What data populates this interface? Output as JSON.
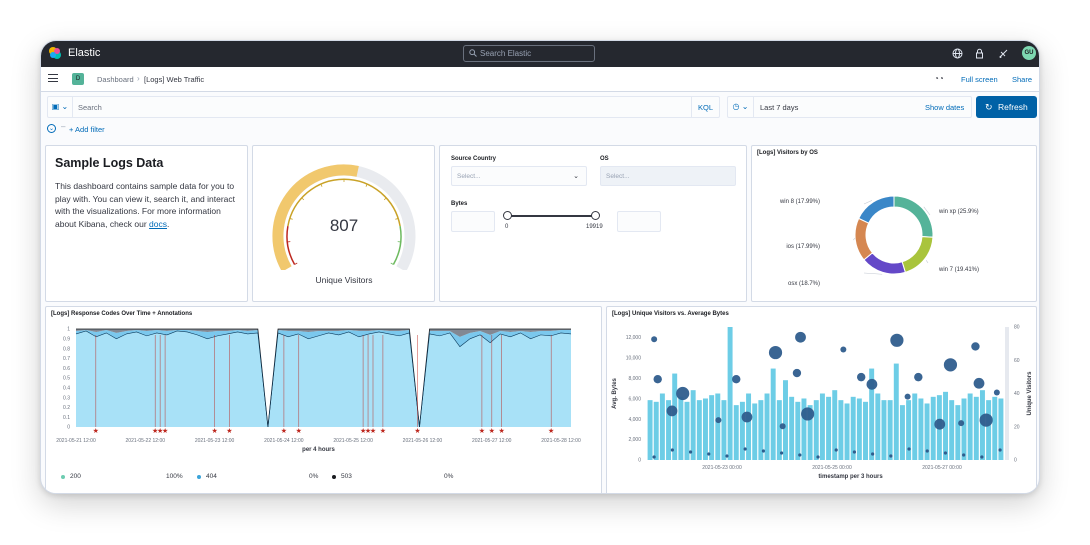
{
  "app": {
    "brand": "Elastic",
    "search_placeholder": "Search Elastic",
    "avatar_initials": "GU"
  },
  "breadcrumbs": {
    "space_initial": "D",
    "items": [
      "Dashboard",
      "[Logs] Web Traffic"
    ]
  },
  "header_actions": {
    "full_screen": "Full screen",
    "share": "Share"
  },
  "query": {
    "placeholder": "Search",
    "language": "KQL",
    "time_range": "Last 7 days",
    "show_dates": "Show dates",
    "refresh": "Refresh"
  },
  "filters": {
    "add_filter": "+ Add filter"
  },
  "markdown": {
    "title": "Sample Logs Data",
    "body_before_link": "This dashboard contains sample data for you to play with. You can view it, search it, and interact with the visualizations. For more information about Kibana, check our ",
    "link": "docs",
    "body_after_link": "."
  },
  "gauge": {
    "value": "807",
    "label": "Unique Visitors",
    "fill_fraction": 0.55
  },
  "controls": {
    "source_country_label": "Source Country",
    "source_country_placeholder": "Select...",
    "os_label": "OS",
    "os_placeholder": "Select...",
    "bytes_label": "Bytes",
    "bytes_min": "0",
    "bytes_max": "19919"
  },
  "visitors_by_os": {
    "title": "[Logs] Visitors by OS",
    "chart_data": {
      "type": "pie",
      "donut": true,
      "slices": [
        {
          "label": "win xp (25.9%)",
          "value": 25.9,
          "color": "#54b399"
        },
        {
          "label": "win 7 (19.41%)",
          "value": 19.41,
          "color": "#a9c43c"
        },
        {
          "label": "osx (18.7%)",
          "value": 18.7,
          "color": "#6448c8"
        },
        {
          "label": "ios (17.99%)",
          "value": 17.99,
          "color": "#d58751"
        },
        {
          "label": "win 8 (17.99%)",
          "value": 17.99,
          "color": "#3a87c8"
        }
      ]
    }
  },
  "response_codes": {
    "title": "[Logs] Response Codes Over Time + Annotations",
    "xlabel": "per 4 hours",
    "chart_data": {
      "type": "area",
      "stacked": true,
      "ylim": [
        0,
        1
      ],
      "y_ticks": [
        "0",
        "0.1",
        "0.2",
        "0.3",
        "0.4",
        "0.5",
        "0.6",
        "0.7",
        "0.8",
        "0.9",
        "1"
      ],
      "x_ticks": [
        "2021-05-21 12:00",
        "2021-05-22 12:00",
        "2021-05-23 12:00",
        "2021-05-24 12:00",
        "2021-05-25 12:00",
        "2021-05-26 12:00",
        "2021-05-27 12:00",
        "2021-05-28 12:00"
      ],
      "series": [
        {
          "name": "200",
          "color": "#6dccb1",
          "values": [
            0.95,
            0.98,
            0.92,
            0.96,
            0.9,
            0.95,
            0.97,
            0.93,
            0.96,
            0.94,
            0.98,
            0.97,
            0.94,
            0.9,
            0.93,
            0.95,
            0.97,
            0.95,
            0.96,
            0.0,
            0.96,
            0.92,
            0.95,
            0.9,
            0.93,
            0.96,
            0.94,
            0.97,
            0.92,
            0.95,
            0.97,
            0.95,
            0.93,
            0.96,
            0.0,
            0.95,
            0.93,
            0.96,
            0.82,
            0.9,
            0.94,
            0.86,
            0.95,
            0.92,
            0.96,
            0.9,
            0.94,
            0.93,
            0.96,
            0.95
          ]
        },
        {
          "name": "404",
          "color": "#79aad9",
          "values": [
            0.03,
            0.01,
            0.05,
            0.03,
            0.06,
            0.03,
            0.02,
            0.05,
            0.03,
            0.04,
            0.01,
            0.02,
            0.04,
            0.07,
            0.05,
            0.03,
            0.02,
            0.03,
            0.03,
            0.0,
            0.03,
            0.06,
            0.03,
            0.07,
            0.05,
            0.02,
            0.04,
            0.02,
            0.06,
            0.03,
            0.02,
            0.03,
            0.05,
            0.03,
            0.0,
            0.03,
            0.05,
            0.02,
            0.1,
            0.06,
            0.04,
            0.08,
            0.03,
            0.05,
            0.02,
            0.07,
            0.04,
            0.05,
            0.03,
            0.04
          ]
        },
        {
          "name": "503",
          "color": "#6a717d",
          "values": [
            0.02,
            0.01,
            0.03,
            0.01,
            0.04,
            0.02,
            0.01,
            0.02,
            0.01,
            0.02,
            0.01,
            0.01,
            0.02,
            0.03,
            0.02,
            0.02,
            0.01,
            0.02,
            0.01,
            0.0,
            0.01,
            0.02,
            0.02,
            0.03,
            0.02,
            0.02,
            0.02,
            0.01,
            0.02,
            0.02,
            0.01,
            0.02,
            0.02,
            0.01,
            0.0,
            0.02,
            0.02,
            0.02,
            0.08,
            0.04,
            0.02,
            0.06,
            0.02,
            0.03,
            0.02,
            0.03,
            0.02,
            0.02,
            0.01,
            0.01
          ]
        }
      ],
      "annotation_positions": [
        0.04,
        0.16,
        0.17,
        0.18,
        0.28,
        0.31,
        0.42,
        0.45,
        0.58,
        0.59,
        0.6,
        0.62,
        0.69,
        0.82,
        0.84,
        0.86,
        0.96
      ]
    },
    "legend": [
      {
        "name": "200",
        "value": "100%",
        "color": "#6dccb1"
      },
      {
        "name": "404",
        "value": "0%",
        "color": "#3ba4d9"
      },
      {
        "name": "503",
        "value": "0%",
        "color": "#1a1c21"
      }
    ]
  },
  "unique_vs_bytes": {
    "title": "[Logs] Unique Visitors vs. Average Bytes",
    "xlabel": "timestamp per 3 hours",
    "ylabel_left": "Avg. Bytes",
    "ylabel_right": "Unique Visitors",
    "chart_data": {
      "type": "bar",
      "left_ticks": [
        "0",
        "2,000",
        "4,000",
        "6,000",
        "8,000",
        "10,000",
        "12,000"
      ],
      "right_ticks": [
        "0",
        "20",
        "40",
        "60",
        "80"
      ],
      "x_ticks": [
        "2021-05-23 00:00",
        "2021-05-25 00:00",
        "2021-05-27 00:00"
      ],
      "left_max": 13000,
      "right_max": 80,
      "bars_unique_visitors": [
        36,
        35,
        40,
        36,
        52,
        38,
        35,
        42,
        36,
        37,
        39,
        40,
        36,
        80,
        33,
        35,
        40,
        34,
        36,
        40,
        55,
        36,
        48,
        38,
        35,
        37,
        33,
        36,
        40,
        38,
        42,
        36,
        34,
        38,
        37,
        35,
        55,
        40,
        36,
        36,
        58,
        33,
        36,
        40,
        37,
        34,
        38,
        39,
        41,
        36,
        33,
        37,
        40,
        38,
        42,
        36,
        38,
        37
      ],
      "bubbles_avg_bytes": [
        [
          0.02,
          11800
        ],
        [
          0.03,
          7900
        ],
        [
          0.07,
          4800
        ],
        [
          0.1,
          6500
        ],
        [
          0.2,
          3900
        ],
        [
          0.25,
          7900
        ],
        [
          0.28,
          4200
        ],
        [
          0.36,
          10500
        ],
        [
          0.38,
          3300
        ],
        [
          0.42,
          8500
        ],
        [
          0.43,
          12000
        ],
        [
          0.45,
          4500
        ],
        [
          0.55,
          10800
        ],
        [
          0.6,
          8100
        ],
        [
          0.63,
          7400
        ],
        [
          0.7,
          11700
        ],
        [
          0.73,
          6200
        ],
        [
          0.76,
          8100
        ],
        [
          0.82,
          3500
        ],
        [
          0.85,
          9300
        ],
        [
          0.88,
          3600
        ],
        [
          0.92,
          11100
        ],
        [
          0.93,
          7500
        ],
        [
          0.95,
          3900
        ],
        [
          0.98,
          6600
        ]
      ]
    }
  }
}
